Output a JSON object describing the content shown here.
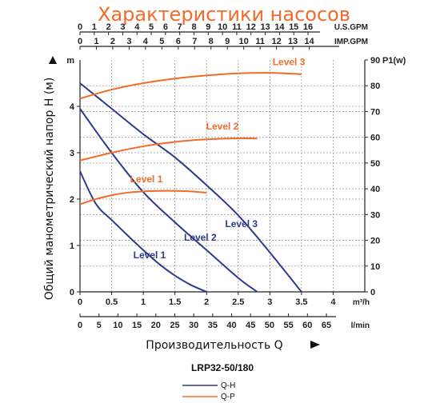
{
  "title": "Характеристики насосов",
  "model": "LRP32-50/180",
  "ylabel": "Общий манометрический напор H (м)",
  "xlabel": "Производительность Q",
  "top_axes": [
    {
      "unit": "U.S.GPM",
      "ticks": [
        "0",
        "1",
        "2",
        "3",
        "4",
        "5",
        "6",
        "7",
        "8",
        "9",
        "10",
        "11",
        "12",
        "13",
        "14",
        "15",
        "16"
      ]
    },
    {
      "unit": "IMP.GPM",
      "ticks": [
        "0",
        "1",
        "2",
        "3",
        "4",
        "5",
        "6",
        "7",
        "8",
        "9",
        "10",
        "11",
        "12",
        "13",
        "14"
      ]
    }
  ],
  "bottom_axes": [
    {
      "unit": "m³/h",
      "ticks": [
        "0",
        "0.5",
        "1",
        "1.5",
        "2",
        "2.5",
        "3",
        "3.5",
        "4"
      ]
    },
    {
      "unit": "l/min",
      "ticks": [
        "0",
        "5",
        "10",
        "15",
        "20",
        "25",
        "30",
        "35",
        "40",
        "45",
        "50",
        "55",
        "60",
        "65"
      ]
    }
  ],
  "left_axis": {
    "unit": "m",
    "ticks": [
      "0",
      "1",
      "2",
      "3",
      "4"
    ]
  },
  "right_axis": {
    "unit": "P1(w)",
    "ticks": [
      "0",
      "10",
      "20",
      "30",
      "40",
      "50",
      "60",
      "70",
      "80",
      "90"
    ]
  },
  "legend": [
    {
      "label": "Q-H",
      "color": "#2e3a8c"
    },
    {
      "label": "Q-P",
      "color": "#f26b2a"
    }
  ],
  "colors": {
    "qh": "#2e3a8c",
    "qp": "#f26b2a",
    "title": "#f26b2a"
  },
  "chart_data": {
    "type": "line",
    "title": "Характеристики насосов",
    "xlabel": "Производительность Q",
    "x_unit": "m³/h",
    "ylabel": "Общий манометрический напор H (м)",
    "y2label": "P1(w)",
    "xlim": [
      0,
      4.5
    ],
    "ylim": [
      0,
      5
    ],
    "y2lim": [
      0,
      90
    ],
    "grid": true,
    "legend_position": "bottom-center",
    "series": [
      {
        "name": "Level 1",
        "kind": "Q-H",
        "axis": "left",
        "x": [
          0,
          0.25,
          0.5,
          0.75,
          1.0,
          1.25,
          1.5,
          1.75,
          2.0
        ],
        "y": [
          2.6,
          1.9,
          1.55,
          1.22,
          0.9,
          0.6,
          0.35,
          0.15,
          0.0
        ]
      },
      {
        "name": "Level 2",
        "kind": "Q-H",
        "axis": "left",
        "x": [
          0,
          0.5,
          1.0,
          1.5,
          2.0,
          2.5,
          2.8
        ],
        "y": [
          3.95,
          3.0,
          2.15,
          1.5,
          0.9,
          0.3,
          0.0
        ]
      },
      {
        "name": "Level 3",
        "kind": "Q-H",
        "axis": "left",
        "x": [
          0,
          0.5,
          1.0,
          1.5,
          2.0,
          2.5,
          3.0,
          3.5
        ],
        "y": [
          4.5,
          3.95,
          3.4,
          2.9,
          2.3,
          1.65,
          0.85,
          0.0
        ]
      },
      {
        "name": "Level 1",
        "kind": "Q-P",
        "axis": "right",
        "x": [
          0,
          0.25,
          0.5,
          0.75,
          1.0,
          1.25,
          1.5,
          1.75,
          2.0
        ],
        "y": [
          34,
          36,
          37.5,
          38.5,
          39,
          39.2,
          39.2,
          39,
          38.5
        ]
      },
      {
        "name": "Level 2",
        "kind": "Q-P",
        "axis": "right",
        "x": [
          0,
          0.5,
          1.0,
          1.5,
          2.0,
          2.5,
          2.8
        ],
        "y": [
          51,
          54,
          56.5,
          58.2,
          59.2,
          59.6,
          59.5
        ]
      },
      {
        "name": "Level 3",
        "kind": "Q-P",
        "axis": "right",
        "x": [
          0,
          0.5,
          1.0,
          1.5,
          2.0,
          2.5,
          3.0,
          3.5
        ],
        "y": [
          75,
          78.5,
          81,
          82.8,
          84,
          84.8,
          85,
          84.5
        ]
      }
    ]
  }
}
